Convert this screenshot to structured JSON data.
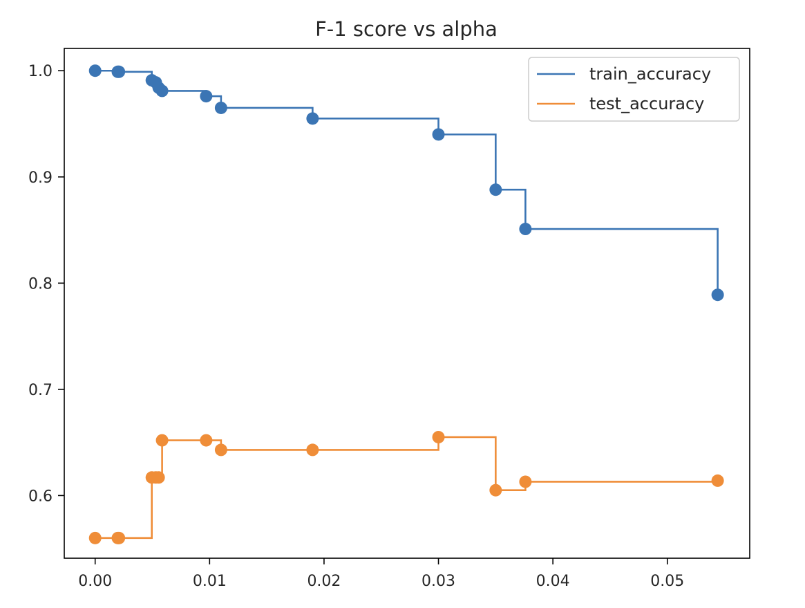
{
  "chart_data": {
    "type": "line",
    "drawstyle": "steps-post",
    "markers": "circle",
    "title": "F-1 score vs alpha",
    "xlabel": "",
    "ylabel": "",
    "xlim": [
      -0.0027,
      0.0572
    ],
    "ylim": [
      0.541,
      1.021
    ],
    "xticks": [
      0.0,
      0.01,
      0.02,
      0.03,
      0.04,
      0.05
    ],
    "xtick_labels": [
      "0.00",
      "0.01",
      "0.02",
      "0.03",
      "0.04",
      "0.05"
    ],
    "yticks": [
      0.6,
      0.7,
      0.8,
      0.9,
      1.0
    ],
    "ytick_labels": [
      "0.6",
      "0.7",
      "0.8",
      "0.9",
      "1.0"
    ],
    "grid": false,
    "legend_position": "top-right",
    "x": [
      0.0,
      0.00198,
      0.00208,
      0.00495,
      0.0053,
      0.00555,
      0.00585,
      0.0097,
      0.011,
      0.019,
      0.03,
      0.035,
      0.0376,
      0.0544
    ],
    "series": [
      {
        "name": "train_accuracy",
        "color": "#3b75b4",
        "values": [
          1.0,
          0.999,
          0.999,
          0.991,
          0.989,
          0.984,
          0.981,
          0.976,
          0.965,
          0.955,
          0.94,
          0.888,
          0.851,
          0.789
        ]
      },
      {
        "name": "test_accuracy",
        "color": "#ef8d38",
        "values": [
          0.56,
          0.56,
          0.56,
          0.617,
          0.617,
          0.617,
          0.652,
          0.652,
          0.643,
          0.643,
          0.655,
          0.605,
          0.613,
          0.614
        ]
      }
    ]
  }
}
